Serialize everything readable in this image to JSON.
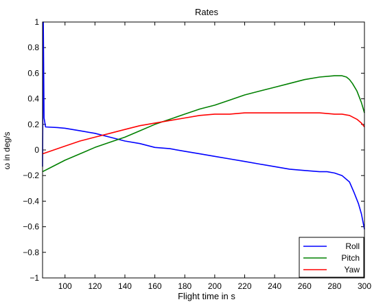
{
  "chart_data": {
    "type": "line",
    "title": "Rates",
    "xlabel": "Flight time in s",
    "ylabel": "ω in deg/s",
    "xlim": [
      85,
      300
    ],
    "ylim": [
      -1,
      1
    ],
    "xticks": [
      100,
      120,
      140,
      160,
      180,
      200,
      220,
      240,
      260,
      280,
      300
    ],
    "yticks": [
      -1,
      -0.8,
      -0.6,
      -0.4,
      -0.2,
      0,
      0.2,
      0.4,
      0.6,
      0.8,
      1
    ],
    "ytick_labels": [
      "−1",
      "−0.8",
      "−0.6",
      "−0.4",
      "−0.2",
      "0",
      "0.2",
      "0.4",
      "0.6",
      "0.8",
      "1"
    ],
    "grid": false,
    "legend_position": "bottom-right",
    "series": [
      {
        "name": "Roll",
        "color": "#0000ff",
        "x": [
          85,
          85.5,
          86,
          87,
          95,
          100,
          110,
          120,
          130,
          140,
          150,
          160,
          170,
          180,
          190,
          200,
          210,
          220,
          230,
          240,
          250,
          260,
          270,
          275,
          280,
          285,
          290,
          293,
          296,
          298,
          300
        ],
        "y": [
          -0.13,
          1.0,
          0.25,
          0.18,
          0.175,
          0.17,
          0.15,
          0.13,
          0.1,
          0.07,
          0.05,
          0.02,
          0.01,
          -0.01,
          -0.03,
          -0.05,
          -0.07,
          -0.09,
          -0.11,
          -0.13,
          -0.15,
          -0.16,
          -0.17,
          -0.17,
          -0.18,
          -0.2,
          -0.25,
          -0.33,
          -0.42,
          -0.5,
          -0.62
        ]
      },
      {
        "name": "Pitch",
        "color": "#008000",
        "x": [
          85,
          90,
          100,
          110,
          120,
          130,
          140,
          150,
          160,
          170,
          180,
          190,
          200,
          210,
          220,
          230,
          240,
          250,
          260,
          270,
          280,
          285,
          288,
          290,
          292,
          295,
          298,
          300
        ],
        "y": [
          -0.17,
          -0.14,
          -0.08,
          -0.03,
          0.02,
          0.06,
          0.1,
          0.15,
          0.2,
          0.24,
          0.28,
          0.32,
          0.35,
          0.39,
          0.43,
          0.46,
          0.49,
          0.52,
          0.55,
          0.57,
          0.58,
          0.58,
          0.57,
          0.55,
          0.52,
          0.46,
          0.37,
          0.29
        ]
      },
      {
        "name": "Yaw",
        "color": "#ff0000",
        "x": [
          85,
          90,
          100,
          110,
          120,
          130,
          140,
          150,
          160,
          170,
          180,
          190,
          200,
          210,
          220,
          230,
          240,
          250,
          260,
          270,
          280,
          285,
          290,
          295,
          298,
          300
        ],
        "y": [
          -0.03,
          -0.01,
          0.03,
          0.07,
          0.1,
          0.13,
          0.16,
          0.19,
          0.21,
          0.23,
          0.25,
          0.27,
          0.28,
          0.28,
          0.29,
          0.29,
          0.29,
          0.29,
          0.29,
          0.29,
          0.28,
          0.28,
          0.27,
          0.24,
          0.21,
          0.18
        ]
      }
    ]
  }
}
